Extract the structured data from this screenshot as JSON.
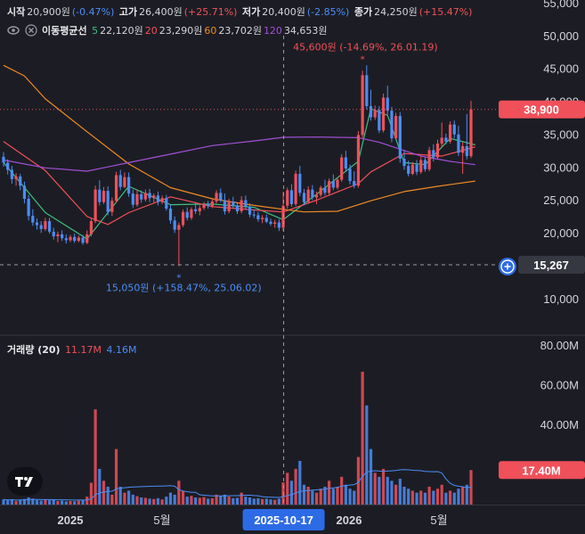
{
  "header": {
    "ohlc": [
      {
        "label": "시작",
        "value": "20,900원",
        "change": "(-0.47%)",
        "tone": "neg"
      },
      {
        "label": "고가",
        "value": "26,400원",
        "change": "(+25.71%)",
        "tone": "pos"
      },
      {
        "label": "저가",
        "value": "20,400원",
        "change": "(-2.85%)",
        "tone": "neg"
      },
      {
        "label": "종가",
        "value": "24,250원",
        "change": "(+15.47%)",
        "tone": "pos"
      }
    ],
    "ma": {
      "label": "이동평균선",
      "entries": [
        {
          "period": "5",
          "value": "22,120원",
          "color": "#3fbf7f"
        },
        {
          "period": "20",
          "value": "23,290원",
          "color": "#f0505a"
        },
        {
          "period": "60",
          "value": "23,702원",
          "color": "#f08a24"
        },
        {
          "period": "120",
          "value": "34,653원",
          "color": "#a14fd6"
        }
      ]
    },
    "volume": {
      "label": "거래량 (20)",
      "value1": "11.17M",
      "value2": "4.16M"
    }
  },
  "annotations": {
    "high": "45,600원 (-14.69%, 26.01.19)",
    "low": "15,050원 (+158.47%, 25.06.02)"
  },
  "price_axis": {
    "ticks": [
      "55,000",
      "50,000",
      "45,000",
      "40,000",
      "35,000",
      "30,000",
      "25,000",
      "20,000",
      "15,000",
      "10,000"
    ],
    "current": "38,900",
    "crosshair": "15,267"
  },
  "volume_axis": {
    "ticks": [
      "80.00M",
      "60.00M",
      "40.00M"
    ],
    "current": "17.40M"
  },
  "time_axis": {
    "labels": [
      "2025",
      "5월",
      "2026",
      "5월"
    ],
    "crosshair": "2025-10-17"
  },
  "colors": {
    "up": "#f0505a",
    "down": "#4c8df6",
    "bg": "#1c1d24"
  },
  "icons": [
    "eye-icon",
    "close-icon",
    "tradingview-logo-icon",
    "plus-circle-icon"
  ],
  "chart_data": {
    "type": "candlestick",
    "price_ylim": [
      5500,
      55000
    ],
    "volume_ylim": [
      0,
      80000000
    ],
    "candles": [
      [
        31700,
        32400,
        30200,
        30800,
        2600000
      ],
      [
        30800,
        31300,
        29000,
        29700,
        2200000
      ],
      [
        29700,
        30300,
        27600,
        28300,
        2600000
      ],
      [
        28300,
        29200,
        27300,
        28700,
        1800000
      ],
      [
        28700,
        29100,
        26600,
        27300,
        2400000
      ],
      [
        27300,
        27900,
        24600,
        25300,
        2800000
      ],
      [
        25300,
        25900,
        22000,
        22700,
        3600000
      ],
      [
        22700,
        23700,
        21200,
        21700,
        3000000
      ],
      [
        21700,
        22300,
        20600,
        21300,
        2200000
      ],
      [
        21300,
        21900,
        20100,
        20700,
        2000000
      ],
      [
        20700,
        22400,
        20400,
        21900,
        2600000
      ],
      [
        21900,
        22400,
        20000,
        20300,
        2200000
      ],
      [
        20300,
        20900,
        19100,
        19600,
        2400000
      ],
      [
        19600,
        20300,
        18700,
        19900,
        1800000
      ],
      [
        19900,
        20500,
        18900,
        19300,
        2000000
      ],
      [
        19300,
        19900,
        18500,
        19000,
        1600000
      ],
      [
        19000,
        19800,
        18700,
        19500,
        1800000
      ],
      [
        19500,
        20000,
        18600,
        18900,
        1700000
      ],
      [
        18900,
        19700,
        18700,
        19400,
        2000000
      ],
      [
        19400,
        19800,
        18300,
        18600,
        2200000
      ],
      [
        18600,
        20500,
        18400,
        19900,
        4000000
      ],
      [
        19900,
        22300,
        19600,
        21900,
        11000000
      ],
      [
        21900,
        27300,
        21600,
        26700,
        48000000
      ],
      [
        26700,
        28100,
        24300,
        24800,
        18000000
      ],
      [
        24800,
        27100,
        24500,
        26500,
        12000000
      ],
      [
        26500,
        27200,
        22800,
        23300,
        9000000
      ],
      [
        23300,
        25500,
        22700,
        25000,
        5000000
      ],
      [
        25000,
        29400,
        24700,
        28900,
        28000000
      ],
      [
        28900,
        29700,
        26600,
        27100,
        9000000
      ],
      [
        27100,
        29300,
        26900,
        28600,
        6000000
      ],
      [
        28600,
        29300,
        25600,
        26100,
        7000000
      ],
      [
        26100,
        26700,
        23900,
        24400,
        5000000
      ],
      [
        24400,
        26700,
        24100,
        26000,
        4200000
      ],
      [
        26000,
        26600,
        24700,
        25200,
        3600000
      ],
      [
        25200,
        26700,
        24900,
        26200,
        3400000
      ],
      [
        26200,
        26800,
        24800,
        25400,
        3000000
      ],
      [
        25400,
        26100,
        24700,
        25800,
        2800000
      ],
      [
        25800,
        26400,
        24300,
        24800,
        3200000
      ],
      [
        24800,
        25800,
        24500,
        25400,
        2600000
      ],
      [
        25400,
        25900,
        23500,
        23800,
        4000000
      ],
      [
        23800,
        24400,
        21500,
        22000,
        6000000
      ],
      [
        22000,
        22600,
        20100,
        20600,
        5000000
      ],
      [
        20600,
        21700,
        15050,
        21300,
        12000000
      ],
      [
        21300,
        23700,
        21000,
        23300,
        7000000
      ],
      [
        23300,
        24000,
        22000,
        22400,
        4000000
      ],
      [
        22400,
        24000,
        22100,
        23700,
        4400000
      ],
      [
        23700,
        24700,
        23000,
        23400,
        3600000
      ],
      [
        23400,
        24300,
        22800,
        23900,
        3400000
      ],
      [
        23900,
        24800,
        23600,
        24500,
        3800000
      ],
      [
        24500,
        25000,
        23800,
        24200,
        3000000
      ],
      [
        24200,
        25200,
        23900,
        24900,
        3200000
      ],
      [
        24900,
        26600,
        24600,
        26200,
        5000000
      ],
      [
        26200,
        26900,
        24800,
        25100,
        4400000
      ],
      [
        25100,
        26100,
        22900,
        23400,
        5000000
      ],
      [
        23400,
        25300,
        23100,
        24900,
        4000000
      ],
      [
        24900,
        25600,
        23900,
        24300,
        3200000
      ],
      [
        24300,
        24800,
        23000,
        23400,
        3400000
      ],
      [
        23400,
        25700,
        23100,
        25100,
        6000000
      ],
      [
        25100,
        25800,
        23700,
        24100,
        4000000
      ],
      [
        24100,
        24600,
        22500,
        22900,
        3600000
      ],
      [
        22900,
        23600,
        22400,
        22800,
        3000000
      ],
      [
        22800,
        23300,
        21800,
        22200,
        3200000
      ],
      [
        22200,
        22800,
        21600,
        22400,
        2800000
      ],
      [
        22400,
        22900,
        21600,
        21800,
        3000000
      ],
      [
        21800,
        22300,
        21200,
        21500,
        2600000
      ],
      [
        21500,
        22100,
        20900,
        21700,
        2400000
      ],
      [
        21700,
        22200,
        20400,
        20900,
        3000000
      ],
      [
        20900,
        26400,
        20400,
        24250,
        11170000
      ],
      [
        24250,
        27000,
        23800,
        26600,
        16000000
      ],
      [
        26600,
        27500,
        24100,
        24500,
        12000000
      ],
      [
        24500,
        29600,
        24200,
        29100,
        18000000
      ],
      [
        29100,
        30300,
        25700,
        26200,
        22000000
      ],
      [
        26200,
        26800,
        24300,
        24800,
        10000000
      ],
      [
        24800,
        27200,
        24600,
        26700,
        9000000
      ],
      [
        26700,
        27400,
        25100,
        25500,
        7000000
      ],
      [
        25500,
        26400,
        24500,
        25900,
        6000000
      ],
      [
        25900,
        27300,
        25600,
        27000,
        8000000
      ],
      [
        27000,
        28200,
        25800,
        26200,
        9000000
      ],
      [
        26200,
        28400,
        25900,
        28000,
        12000000
      ],
      [
        28000,
        29000,
        26600,
        27000,
        8000000
      ],
      [
        27000,
        28500,
        26700,
        28200,
        9000000
      ],
      [
        28200,
        32100,
        27900,
        31600,
        14000000
      ],
      [
        31600,
        32600,
        29400,
        29900,
        10000000
      ],
      [
        29900,
        30500,
        27500,
        28000,
        8000000
      ],
      [
        28000,
        29500,
        26900,
        27300,
        7000000
      ],
      [
        27300,
        35600,
        27000,
        35000,
        24000000
      ],
      [
        35000,
        44800,
        34600,
        44100,
        67000000
      ],
      [
        44100,
        45600,
        38900,
        39400,
        50000000
      ],
      [
        39400,
        41900,
        37200,
        37700,
        28000000
      ],
      [
        37700,
        39500,
        37300,
        38800,
        16000000
      ],
      [
        38800,
        39400,
        35300,
        35700,
        14000000
      ],
      [
        35700,
        41300,
        35400,
        40700,
        18000000
      ],
      [
        40700,
        42500,
        38100,
        38700,
        14000000
      ],
      [
        38700,
        39300,
        33900,
        34500,
        12000000
      ],
      [
        34500,
        38400,
        34200,
        37900,
        10000000
      ],
      [
        37900,
        38500,
        30800,
        31400,
        13000000
      ],
      [
        31400,
        32600,
        29700,
        30300,
        9000000
      ],
      [
        30300,
        31100,
        28700,
        29100,
        8000000
      ],
      [
        29100,
        30900,
        28900,
        30500,
        7000000
      ],
      [
        30500,
        31200,
        28900,
        29400,
        6000000
      ],
      [
        29400,
        31700,
        29100,
        31200,
        7000000
      ],
      [
        31200,
        31600,
        29400,
        29800,
        6000000
      ],
      [
        29800,
        33200,
        29500,
        32700,
        9000000
      ],
      [
        32700,
        33600,
        31000,
        31600,
        7000000
      ],
      [
        31600,
        34300,
        31300,
        33700,
        8000000
      ],
      [
        33700,
        36900,
        33200,
        34600,
        10000000
      ],
      [
        34600,
        35200,
        33600,
        34000,
        6000000
      ],
      [
        34000,
        37100,
        33700,
        36600,
        7000000
      ],
      [
        36600,
        37200,
        34500,
        35100,
        6000000
      ],
      [
        35100,
        36400,
        31800,
        32300,
        8000000
      ],
      [
        32300,
        33900,
        29100,
        33300,
        9000000
      ],
      [
        33300,
        38200,
        31300,
        31800,
        10000000
      ],
      [
        31800,
        40200,
        31500,
        38900,
        17400000
      ]
    ],
    "ma": [
      {
        "period": "5",
        "color": "#3fbf7f",
        "points": [
          [
            0,
            30800
          ],
          [
            10,
            23200
          ],
          [
            20,
            19200
          ],
          [
            30,
            27200
          ],
          [
            40,
            24400
          ],
          [
            50,
            24500
          ],
          [
            60,
            24000
          ],
          [
            67,
            22120
          ],
          [
            75,
            26000
          ],
          [
            85,
            31000
          ],
          [
            88,
            39000
          ],
          [
            92,
            38000
          ],
          [
            96,
            30800
          ],
          [
            101,
            30500
          ],
          [
            107,
            34500
          ],
          [
            113,
            33500
          ]
        ]
      },
      {
        "period": "20",
        "color": "#f0505a",
        "points": [
          [
            0,
            34000
          ],
          [
            10,
            29600
          ],
          [
            20,
            22600
          ],
          [
            25,
            21400
          ],
          [
            30,
            23200
          ],
          [
            40,
            25600
          ],
          [
            50,
            24100
          ],
          [
            60,
            23600
          ],
          [
            67,
            23290
          ],
          [
            75,
            25100
          ],
          [
            85,
            27600
          ],
          [
            88,
            29400
          ],
          [
            96,
            32200
          ],
          [
            105,
            31800
          ],
          [
            113,
            33200
          ]
        ]
      },
      {
        "period": "60",
        "color": "#f08a24",
        "points": [
          [
            0,
            45600
          ],
          [
            5,
            44000
          ],
          [
            10,
            40500
          ],
          [
            20,
            35500
          ],
          [
            30,
            30600
          ],
          [
            40,
            27000
          ],
          [
            50,
            25300
          ],
          [
            60,
            24300
          ],
          [
            67,
            23702
          ],
          [
            72,
            23300
          ],
          [
            80,
            23400
          ],
          [
            88,
            25000
          ],
          [
            96,
            26400
          ],
          [
            104,
            27200
          ],
          [
            113,
            28000
          ]
        ]
      },
      {
        "period": "120",
        "color": "#a14fd6",
        "points": [
          [
            0,
            31200
          ],
          [
            10,
            30000
          ],
          [
            20,
            29500
          ],
          [
            30,
            30800
          ],
          [
            40,
            32100
          ],
          [
            50,
            33400
          ],
          [
            60,
            34100
          ],
          [
            67,
            34653
          ],
          [
            75,
            34700
          ],
          [
            85,
            34600
          ],
          [
            90,
            33900
          ],
          [
            100,
            31800
          ],
          [
            107,
            31000
          ],
          [
            113,
            30500
          ]
        ]
      }
    ]
  }
}
